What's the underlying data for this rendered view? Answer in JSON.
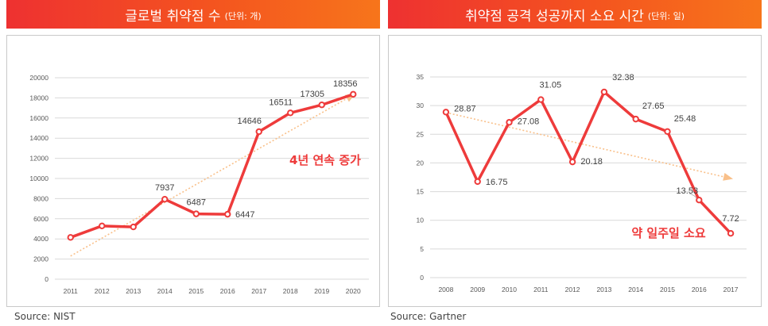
{
  "panels": [
    {
      "title": "글로벌 취약점 수",
      "unit": "(단위: 개)",
      "source": "Source: NIST"
    },
    {
      "title": "취약점 공격 성공까지 소요 시간",
      "unit": "(단위: 일)",
      "source": "Source: Gartner"
    }
  ],
  "chart_data": [
    {
      "type": "line",
      "title": "글로벌 취약점 수 (단위: 개)",
      "categories": [
        "2011",
        "2012",
        "2013",
        "2014",
        "2015",
        "2016",
        "2017",
        "2018",
        "2019",
        "2020"
      ],
      "series": [
        {
          "name": "취약점 수",
          "values": [
            4150,
            5290,
            5190,
            7937,
            6487,
            6447,
            14646,
            16511,
            17305,
            18356
          ]
        }
      ],
      "data_labels": [
        "",
        "",
        "",
        "7937",
        "6487",
        "6447",
        "14646",
        "16511",
        "17305",
        "18356"
      ],
      "yticks": [
        "0",
        "2000",
        "4000",
        "6000",
        "8000",
        "10000",
        "12000",
        "14000",
        "16000",
        "18000",
        "20000"
      ],
      "ylim": [
        0,
        20000
      ],
      "trend": {
        "from": [
          2011,
          2300
        ],
        "to": [
          2020,
          18300
        ]
      },
      "annotation": "4년 연속 증가",
      "accent": "#ee3b3b",
      "trend_color": "#f9c08a"
    },
    {
      "type": "line",
      "title": "취약점 공격 성공까지 소요 시간 (단위: 일)",
      "categories": [
        "2008",
        "2009",
        "2010",
        "2011",
        "2012",
        "2013",
        "2014",
        "2015",
        "2016",
        "2017"
      ],
      "series": [
        {
          "name": "소요 시간",
          "values": [
            28.87,
            16.75,
            27.08,
            31.05,
            20.18,
            32.38,
            27.65,
            25.48,
            13.53,
            7.72
          ]
        }
      ],
      "data_labels": [
        "28.87",
        "16.75",
        "27.08",
        "31.05",
        "20.18",
        "32.38",
        "27.65",
        "25.48",
        "13.53",
        "7.72"
      ],
      "yticks": [
        "0",
        "5",
        "10",
        "15",
        "20",
        "25",
        "30",
        "35"
      ],
      "ylim": [
        0,
        35
      ],
      "trend": {
        "from": [
          2008,
          28.8
        ],
        "to": [
          2017,
          17.3
        ]
      },
      "annotation": "약 일주일 소요",
      "accent": "#ee3b3b",
      "trend_color": "#f9c08a"
    }
  ]
}
